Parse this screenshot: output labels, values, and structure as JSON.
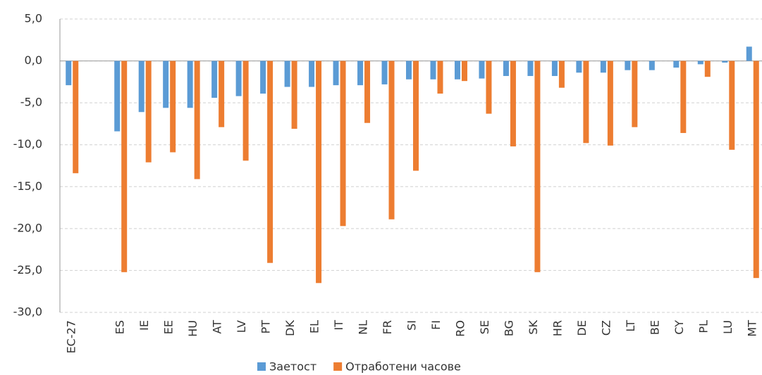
{
  "chart_data": {
    "type": "bar",
    "categories": [
      "EC-27",
      null,
      "ES",
      "IE",
      "EE",
      "HU",
      "AT",
      "LV",
      "PT",
      "DK",
      "EL",
      "IT",
      "NL",
      "FR",
      "SI",
      "FI",
      "RO",
      "SE",
      "BG",
      "SK",
      "HR",
      "DE",
      "CZ",
      "LT",
      "BE",
      "CY",
      "PL",
      "LU",
      "MT"
    ],
    "series": [
      {
        "name": "Заетост",
        "color": "#5b9bd5",
        "values": [
          -2.9,
          null,
          -8.4,
          -6.1,
          -5.6,
          -5.6,
          -4.4,
          -4.2,
          -3.9,
          -3.1,
          -3.1,
          -2.9,
          -2.9,
          -2.8,
          -2.2,
          -2.2,
          -2.2,
          -2.1,
          -1.8,
          -1.8,
          -1.8,
          -1.4,
          -1.4,
          -1.1,
          -1.1,
          -0.8,
          -0.4,
          -0.2,
          1.7
        ]
      },
      {
        "name": "Отработени часове",
        "color": "#ed7d31",
        "values": [
          -13.4,
          null,
          -25.2,
          -12.1,
          -10.9,
          -14.1,
          -7.9,
          -11.9,
          -24.1,
          -8.1,
          -26.5,
          -19.7,
          -7.4,
          -18.9,
          -13.1,
          -3.9,
          -2.4,
          -6.3,
          -10.2,
          -25.2,
          -3.2,
          -9.8,
          -10.1,
          -7.9,
          null,
          -8.6,
          -1.9,
          -10.6,
          -25.9
        ]
      }
    ],
    "ylim": [
      -30,
      5
    ],
    "yticks": [
      {
        "value": -30,
        "label": "-30,0"
      },
      {
        "value": -25,
        "label": "-25,0"
      },
      {
        "value": -20,
        "label": "-20,0"
      },
      {
        "value": -15,
        "label": "-15,0"
      },
      {
        "value": -10,
        "label": "-10,0"
      },
      {
        "value": -5,
        "label": "-5,0"
      },
      {
        "value": 0,
        "label": "0,0"
      },
      {
        "value": 5,
        "label": "5,0"
      }
    ],
    "grid": true,
    "legend": "bottom"
  }
}
